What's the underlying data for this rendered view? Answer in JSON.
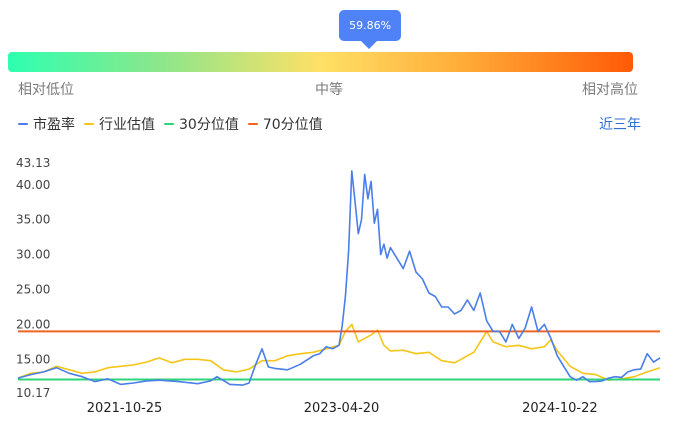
{
  "gauge": {
    "percent_label": "59.86%",
    "percent": 59.86,
    "label_low": "相对低位",
    "label_mid": "中等",
    "label_high": "相对高位"
  },
  "range_button": "近三年",
  "colors": {
    "pe": "#4a7ee8",
    "industry": "#f5c518",
    "p30": "#2ed37a",
    "p70": "#f06420"
  },
  "chart_data": {
    "type": "line",
    "legend_position": "top-left",
    "ylim": [
      10.17,
      43.13
    ],
    "y_ticks": [
      "43.13",
      "40.00",
      "35.00",
      "30.00",
      "25.00",
      "20.00",
      "15.00",
      "10.17"
    ],
    "y_tick_values": [
      43.13,
      40,
      35,
      30,
      25,
      20,
      15,
      10.17
    ],
    "x_ticks": [
      "2021-10-25",
      "2023-04-20",
      "2024-10-22"
    ],
    "x_tick_positions": [
      0.166,
      0.504,
      0.844
    ],
    "grid": false,
    "series": [
      {
        "name": "市盈率",
        "key": "pe",
        "x": [
          0,
          0.02,
          0.04,
          0.06,
          0.08,
          0.1,
          0.12,
          0.14,
          0.16,
          0.18,
          0.2,
          0.22,
          0.25,
          0.28,
          0.3,
          0.31,
          0.33,
          0.35,
          0.36,
          0.37,
          0.38,
          0.39,
          0.4,
          0.42,
          0.44,
          0.46,
          0.47,
          0.48,
          0.49,
          0.5,
          0.505,
          0.51,
          0.515,
          0.52,
          0.525,
          0.53,
          0.535,
          0.54,
          0.545,
          0.55,
          0.555,
          0.56,
          0.565,
          0.57,
          0.575,
          0.58,
          0.59,
          0.6,
          0.61,
          0.62,
          0.63,
          0.64,
          0.65,
          0.66,
          0.67,
          0.68,
          0.69,
          0.7,
          0.71,
          0.72,
          0.73,
          0.74,
          0.75,
          0.76,
          0.77,
          0.78,
          0.79,
          0.8,
          0.81,
          0.82,
          0.83,
          0.84,
          0.85,
          0.86,
          0.87,
          0.88,
          0.89,
          0.9,
          0.91,
          0.92,
          0.93,
          0.94,
          0.95,
          0.96,
          0.97,
          0.98,
          0.99,
          1.0
        ],
        "y": [
          12.3,
          12.8,
          13.2,
          13.8,
          13.0,
          12.5,
          11.8,
          12.2,
          11.4,
          11.6,
          11.9,
          12.0,
          11.8,
          11.5,
          11.9,
          12.5,
          11.4,
          11.3,
          11.6,
          14.2,
          16.5,
          13.9,
          13.7,
          13.5,
          14.3,
          15.5,
          15.8,
          16.8,
          16.5,
          17.0,
          19.8,
          24.0,
          30.5,
          42.0,
          37.5,
          33.0,
          35.0,
          41.5,
          38.0,
          40.5,
          34.5,
          36.5,
          30.0,
          31.5,
          29.5,
          31.0,
          29.5,
          28.0,
          30.5,
          27.5,
          26.5,
          24.5,
          24.0,
          22.5,
          22.5,
          21.5,
          22.0,
          23.5,
          22.0,
          24.5,
          20.5,
          19.0,
          19.0,
          17.5,
          20.0,
          18.0,
          19.5,
          22.5,
          19.0,
          20.0,
          18.0,
          15.5,
          14.0,
          12.5,
          12.0,
          12.5,
          11.8,
          11.8,
          11.9,
          12.3,
          12.5,
          12.4,
          13.2,
          13.5,
          13.6,
          15.8,
          14.6,
          15.2
        ]
      },
      {
        "name": "行业估值",
        "key": "industry",
        "x": [
          0,
          0.02,
          0.04,
          0.06,
          0.08,
          0.1,
          0.12,
          0.14,
          0.16,
          0.18,
          0.2,
          0.22,
          0.24,
          0.26,
          0.28,
          0.3,
          0.32,
          0.34,
          0.36,
          0.38,
          0.4,
          0.42,
          0.44,
          0.46,
          0.48,
          0.5,
          0.51,
          0.52,
          0.53,
          0.54,
          0.55,
          0.56,
          0.57,
          0.58,
          0.6,
          0.62,
          0.64,
          0.66,
          0.68,
          0.7,
          0.71,
          0.72,
          0.73,
          0.74,
          0.76,
          0.78,
          0.8,
          0.82,
          0.83,
          0.84,
          0.86,
          0.88,
          0.9,
          0.92,
          0.94,
          0.96,
          0.98,
          1.0
        ],
        "y": [
          12.3,
          13.0,
          13.2,
          14.0,
          13.5,
          13.0,
          13.2,
          13.8,
          14.0,
          14.2,
          14.6,
          15.2,
          14.5,
          15.0,
          15.0,
          14.8,
          13.5,
          13.2,
          13.6,
          14.8,
          14.8,
          15.5,
          15.8,
          16.0,
          16.5,
          17.0,
          19.0,
          20.0,
          17.5,
          18.0,
          18.5,
          19.2,
          17.0,
          16.2,
          16.3,
          15.8,
          16.0,
          14.8,
          14.5,
          15.5,
          16.0,
          17.5,
          19.0,
          17.5,
          16.8,
          17.0,
          16.5,
          16.8,
          17.8,
          16.2,
          14.0,
          13.0,
          12.8,
          12.0,
          12.2,
          12.5,
          13.2,
          13.8
        ]
      },
      {
        "name": "30分位值",
        "key": "p30",
        "x": [
          0,
          1
        ],
        "y": [
          12.1,
          12.1
        ]
      },
      {
        "name": "70分位值",
        "key": "p70",
        "x": [
          0,
          1
        ],
        "y": [
          19.0,
          19.0
        ]
      }
    ]
  }
}
